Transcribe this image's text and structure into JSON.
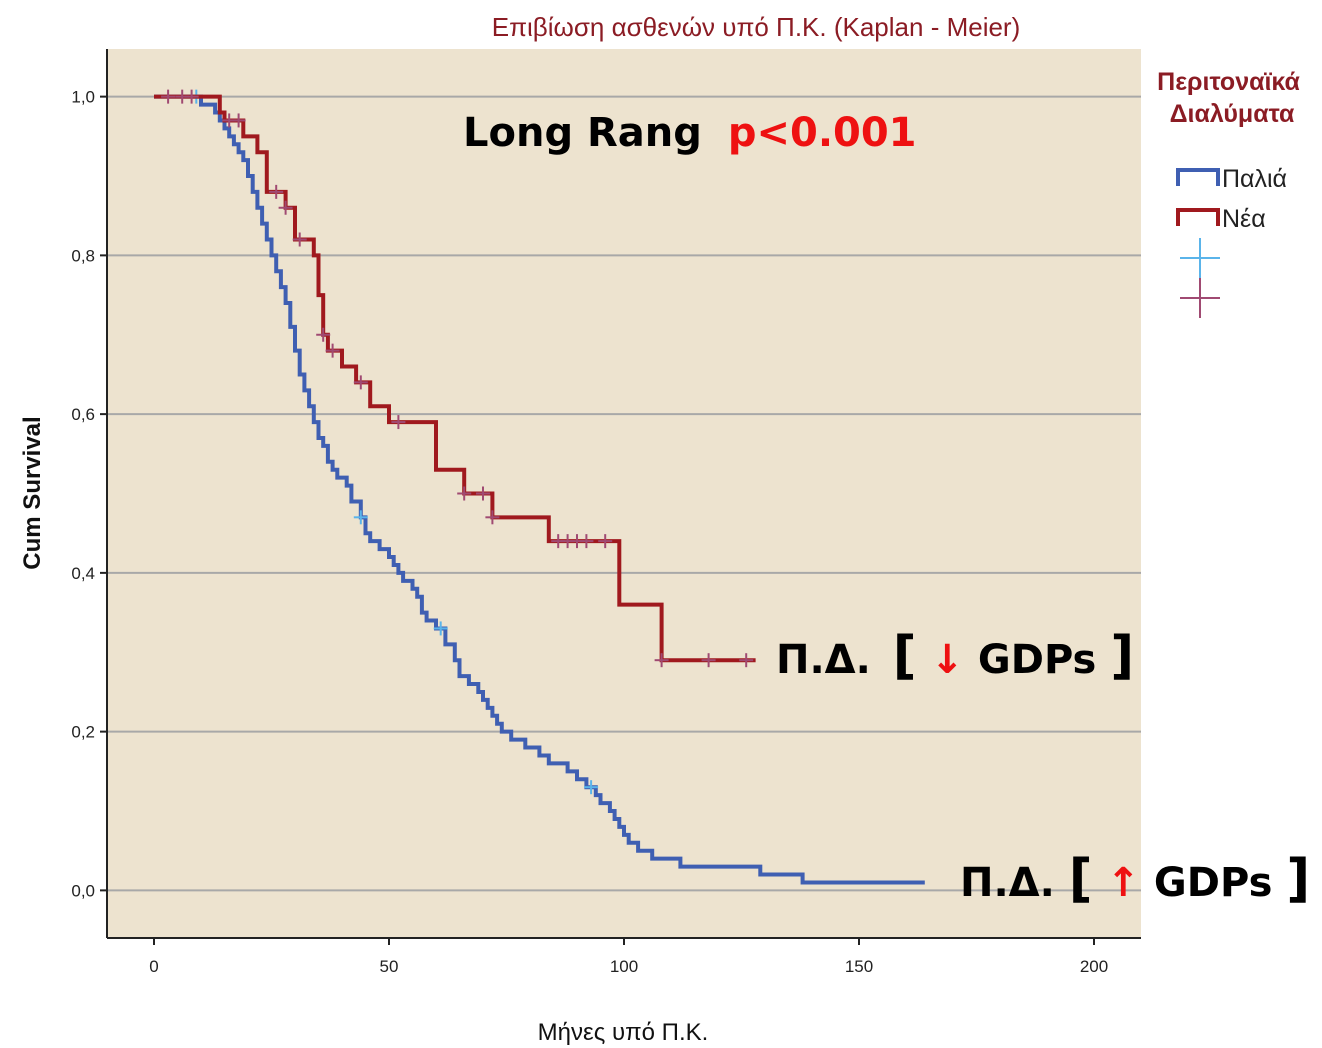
{
  "chart_data": {
    "type": "line",
    "step": true,
    "title": "Επιβίωση ασθενών υπό Π.Κ. (Kaplan - Meier)",
    "xlabel": "Μήνες υπό Π.Κ.",
    "ylabel": "Cum Survival",
    "xlim": [
      -10,
      210
    ],
    "ylim": [
      -0.06,
      1.06
    ],
    "x_ticks": [
      0,
      50,
      100,
      150,
      200
    ],
    "x_tick_labels": [
      "0",
      "50",
      "100",
      "150",
      "200"
    ],
    "y_ticks": [
      0.0,
      0.2,
      0.4,
      0.6,
      0.8,
      1.0
    ],
    "y_tick_labels": [
      "0,0",
      "0,2",
      "0,4",
      "0,6",
      "0,8",
      "1,0"
    ],
    "grid": "horizontal",
    "plot_background": "#ede3cf",
    "legend": {
      "title": "Περιτοναϊκά Διαλύματα",
      "placement": "right",
      "entries": [
        {
          "label": "Παλιά",
          "kind": "line",
          "color": "#3f5fb2"
        },
        {
          "label": "Νέα",
          "kind": "line",
          "color": "#a0191e"
        },
        {
          "label": "",
          "kind": "censor",
          "color": "#5ab4ea"
        },
        {
          "label": "",
          "kind": "censor",
          "color": "#a04a72"
        }
      ]
    },
    "series": [
      {
        "name": "Παλιά",
        "color": "#3f5fb2",
        "censor_color": "#5ab4ea",
        "points": [
          [
            0,
            1.0
          ],
          [
            8,
            1.0
          ],
          [
            10,
            0.99
          ],
          [
            13,
            0.98
          ],
          [
            14,
            0.97
          ],
          [
            15,
            0.96
          ],
          [
            16,
            0.95
          ],
          [
            17,
            0.94
          ],
          [
            18,
            0.93
          ],
          [
            19,
            0.92
          ],
          [
            20,
            0.9
          ],
          [
            21,
            0.88
          ],
          [
            22,
            0.86
          ],
          [
            23,
            0.84
          ],
          [
            24,
            0.82
          ],
          [
            25,
            0.8
          ],
          [
            26,
            0.78
          ],
          [
            27,
            0.76
          ],
          [
            28,
            0.74
          ],
          [
            29,
            0.71
          ],
          [
            30,
            0.68
          ],
          [
            31,
            0.65
          ],
          [
            32,
            0.63
          ],
          [
            33,
            0.61
          ],
          [
            34,
            0.59
          ],
          [
            35,
            0.57
          ],
          [
            36,
            0.56
          ],
          [
            37,
            0.54
          ],
          [
            38,
            0.53
          ],
          [
            39,
            0.52
          ],
          [
            41,
            0.51
          ],
          [
            42,
            0.49
          ],
          [
            44,
            0.47
          ],
          [
            45,
            0.45
          ],
          [
            46,
            0.44
          ],
          [
            48,
            0.43
          ],
          [
            50,
            0.42
          ],
          [
            51,
            0.41
          ],
          [
            52,
            0.4
          ],
          [
            53,
            0.39
          ],
          [
            55,
            0.38
          ],
          [
            56,
            0.37
          ],
          [
            57,
            0.35
          ],
          [
            58,
            0.34
          ],
          [
            60,
            0.33
          ],
          [
            62,
            0.31
          ],
          [
            64,
            0.29
          ],
          [
            65,
            0.27
          ],
          [
            67,
            0.26
          ],
          [
            69,
            0.25
          ],
          [
            70,
            0.24
          ],
          [
            71,
            0.23
          ],
          [
            72,
            0.22
          ],
          [
            73,
            0.21
          ],
          [
            74,
            0.2
          ],
          [
            76,
            0.19
          ],
          [
            79,
            0.18
          ],
          [
            82,
            0.17
          ],
          [
            84,
            0.16
          ],
          [
            88,
            0.15
          ],
          [
            90,
            0.14
          ],
          [
            92,
            0.13
          ],
          [
            94,
            0.12
          ],
          [
            95,
            0.11
          ],
          [
            97,
            0.1
          ],
          [
            98,
            0.09
          ],
          [
            99,
            0.08
          ],
          [
            100,
            0.07
          ],
          [
            101,
            0.06
          ],
          [
            103,
            0.05
          ],
          [
            106,
            0.04
          ],
          [
            112,
            0.03
          ],
          [
            129,
            0.02
          ],
          [
            138,
            0.01
          ],
          [
            164,
            0.01
          ]
        ],
        "censored_x": [
          9,
          44,
          61,
          93
        ]
      },
      {
        "name": "Νέα",
        "color": "#a0191e",
        "censor_color": "#a04a72",
        "points": [
          [
            0,
            1.0
          ],
          [
            12,
            1.0
          ],
          [
            14,
            0.98
          ],
          [
            15,
            0.97
          ],
          [
            19,
            0.95
          ],
          [
            22,
            0.93
          ],
          [
            24,
            0.88
          ],
          [
            28,
            0.86
          ],
          [
            30,
            0.82
          ],
          [
            34,
            0.8
          ],
          [
            35,
            0.75
          ],
          [
            36,
            0.7
          ],
          [
            37,
            0.68
          ],
          [
            40,
            0.66
          ],
          [
            43,
            0.64
          ],
          [
            46,
            0.61
          ],
          [
            50,
            0.59
          ],
          [
            60,
            0.53
          ],
          [
            66,
            0.5
          ],
          [
            72,
            0.47
          ],
          [
            84,
            0.44
          ],
          [
            99,
            0.36
          ],
          [
            108,
            0.29
          ],
          [
            128,
            0.29
          ]
        ],
        "censored_x": [
          3,
          6,
          8,
          16,
          18,
          26,
          28,
          31,
          36,
          38,
          44,
          52,
          66,
          70,
          72,
          86,
          88,
          90,
          92,
          96,
          108,
          118,
          126
        ]
      }
    ],
    "annotations": {
      "logrank_text": "Long Rang",
      "logrank_p": "p<0.001",
      "new_label_prefix": "Π.Δ. ",
      "new_label_arrow": "↓",
      "new_label_suffix": "GDPs",
      "old_label_prefix": "Π.Δ.",
      "old_label_arrow": "↑",
      "old_label_suffix": "GDPs",
      "bracket_open": "[",
      "bracket_close": "]"
    }
  }
}
